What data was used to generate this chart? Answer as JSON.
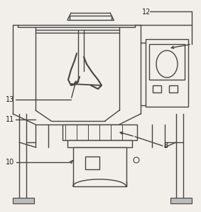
{
  "bg_color": "#f2efea",
  "line_color": "#444444",
  "line_width": 1.0,
  "label_fs": 7,
  "label_color": "#222222"
}
